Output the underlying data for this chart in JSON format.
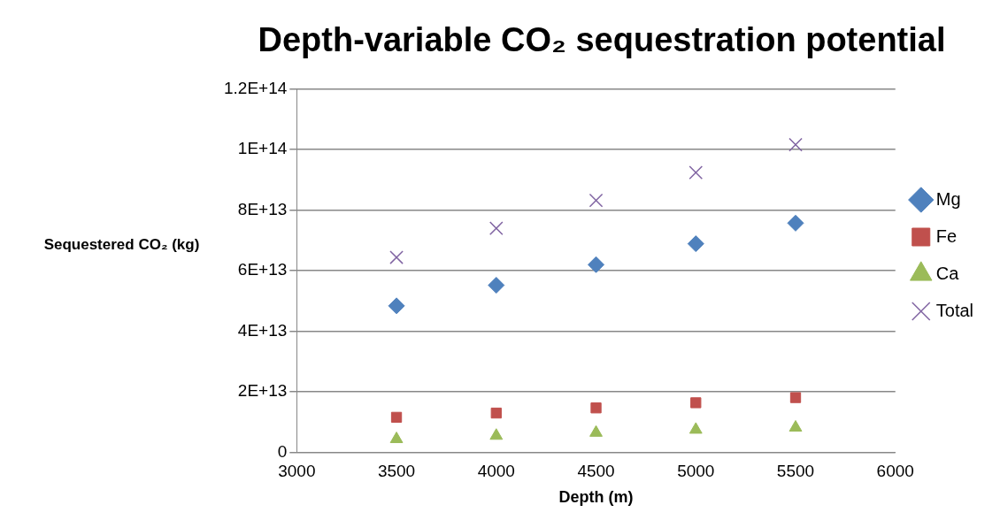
{
  "chart_data": {
    "type": "scatter",
    "title": "Depth-variable CO₂ sequestration potential",
    "xlabel": "Depth (m)",
    "ylabel": "Sequestered CO₂ (kg)",
    "x": [
      3500,
      4000,
      4500,
      5000,
      5500
    ],
    "series": [
      {
        "name": "Mg",
        "color": "#4f81bd",
        "marker": "diamond",
        "values": [
          48400000000000.0,
          55200000000000.0,
          62000000000000.0,
          68900000000000.0,
          75700000000000.0
        ]
      },
      {
        "name": "Fe",
        "color": "#c0504d",
        "marker": "square",
        "values": [
          11600000000000.0,
          13000000000000.0,
          14700000000000.0,
          16400000000000.0,
          18100000000000.0
        ]
      },
      {
        "name": "Ca",
        "color": "#9bbb59",
        "marker": "triangle",
        "values": [
          4400000000000.0,
          5500000000000.0,
          6500000000000.0,
          7500000000000.0,
          8200000000000.0
        ]
      },
      {
        "name": "Total",
        "color": "#8064a2",
        "marker": "cross",
        "values": [
          64400000000000.0,
          74000000000000.0,
          83200000000000.0,
          92400000000000.0,
          101600000000000.0
        ]
      }
    ],
    "xlim": [
      3000,
      6000
    ],
    "xticks": [
      3000,
      3500,
      4000,
      4500,
      5000,
      5500,
      6000
    ],
    "ylim": [
      0,
      120000000000000.0
    ],
    "yticks": [
      0,
      {
        "value": 20000000000000.0,
        "label": "2E+13"
      },
      {
        "value": 40000000000000.0,
        "label": "4E+13"
      },
      {
        "value": 60000000000000.0,
        "label": "6E+13"
      },
      {
        "value": 80000000000000.0,
        "label": "8E+13"
      },
      {
        "value": 100000000000000.0,
        "label": "1E+14"
      },
      {
        "value": 120000000000000.0,
        "label": "1.2E+14"
      }
    ],
    "grid": "y",
    "legend": "right"
  }
}
